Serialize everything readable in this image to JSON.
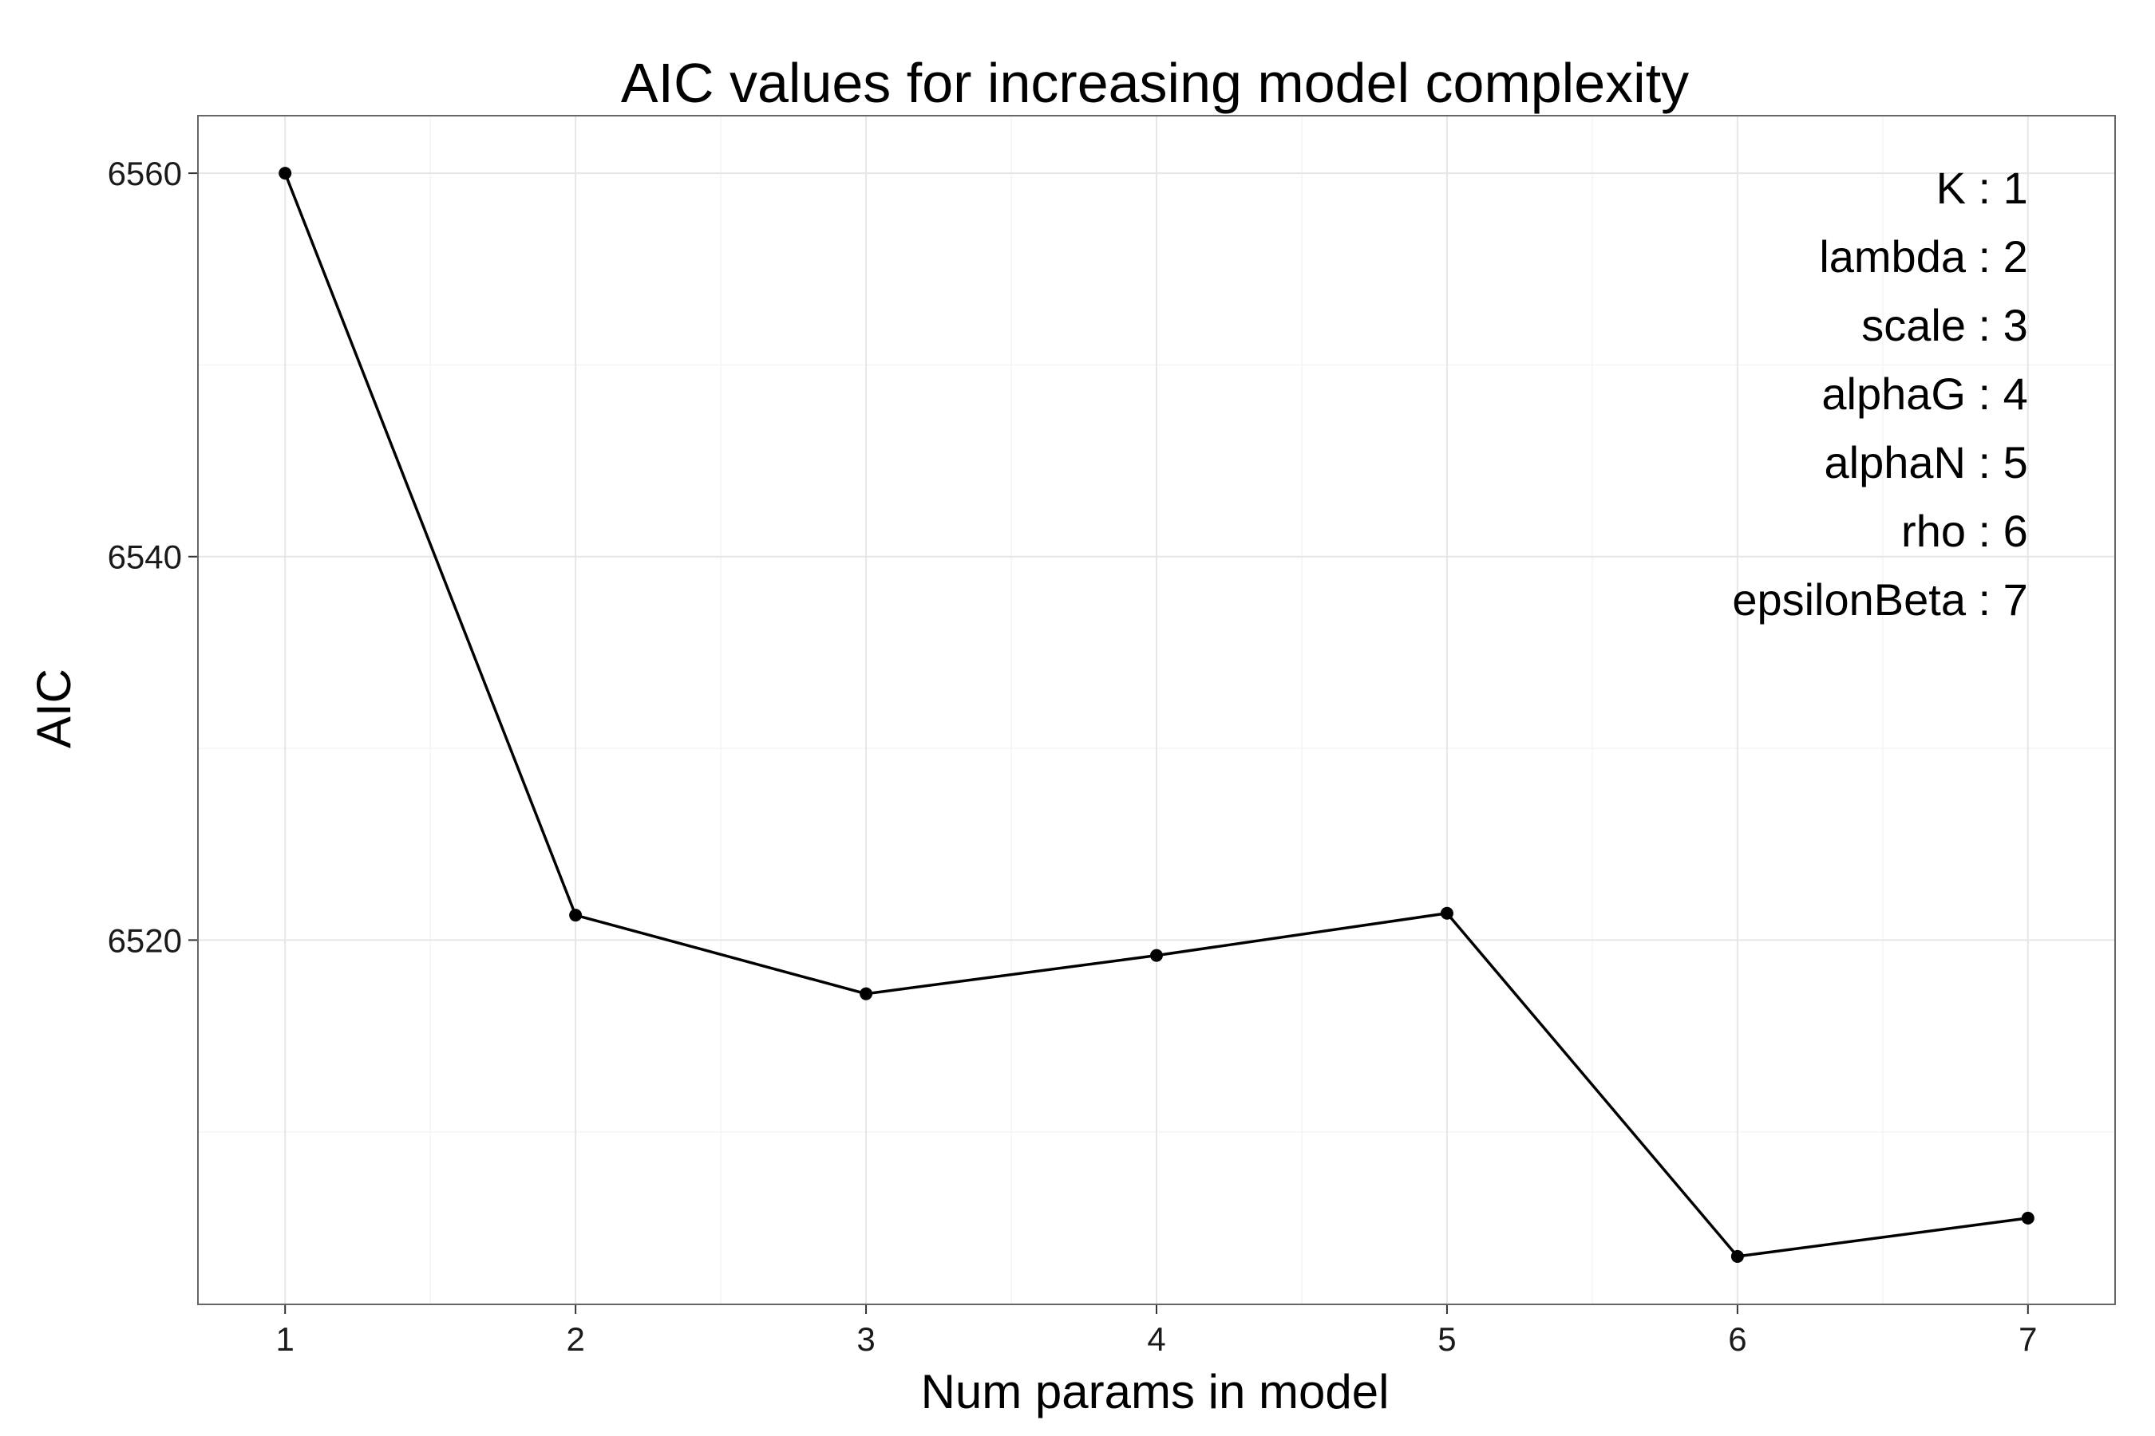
{
  "chart_data": {
    "type": "line",
    "title": "AIC values for increasing model complexity",
    "xlabel": "Num params in model",
    "ylabel": "AIC",
    "x": [
      1,
      2,
      3,
      4,
      5,
      6,
      7
    ],
    "values": [
      6560.0,
      6521.3,
      6517.2,
      6519.2,
      6521.4,
      6503.5,
      6505.5
    ],
    "xlim": [
      0.7,
      7.3
    ],
    "ylim": [
      6501.0,
      6563.0
    ],
    "x_ticks": [
      "1",
      "2",
      "3",
      "4",
      "5",
      "6",
      "7"
    ],
    "y_ticks": [
      6520,
      6540,
      6560
    ],
    "y_tick_labels": [
      "6520",
      "6540",
      "6560"
    ],
    "annotations": [
      "K : 1",
      "lambda : 2",
      "scale : 3",
      "alphaG : 4",
      "alphaN : 5",
      "rho : 6",
      "epsilonBeta : 7"
    ],
    "annotation_placement": "top-right",
    "grid": true,
    "colors": {
      "line": "#000000",
      "grid": "#e6e6e6",
      "border": "#666666"
    }
  }
}
